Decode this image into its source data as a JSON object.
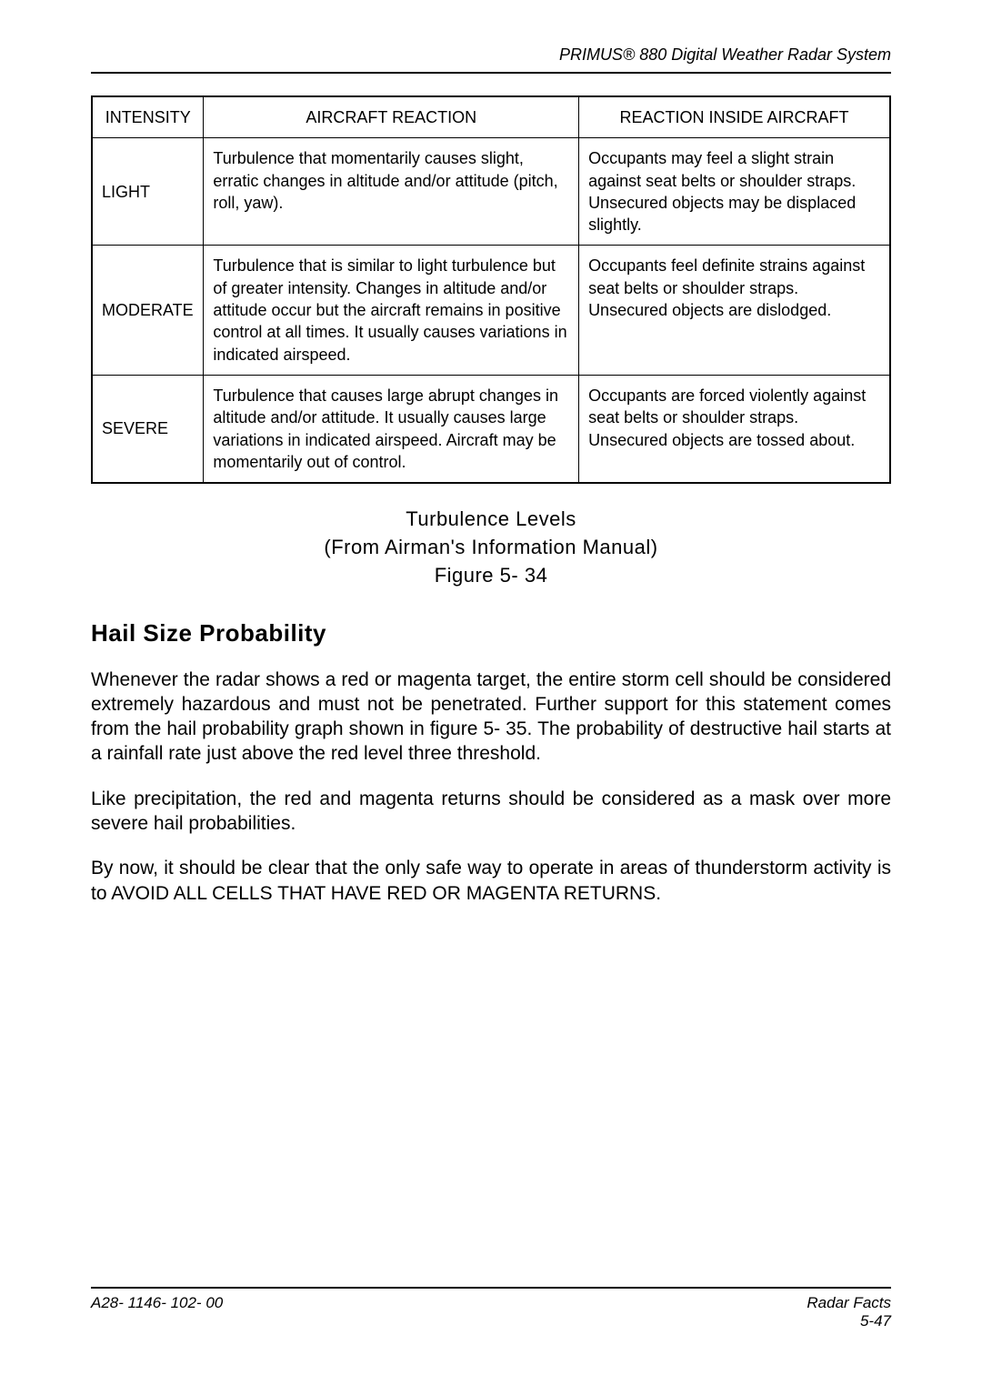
{
  "header": {
    "text": "PRIMUS® 880 Digital Weather Radar System"
  },
  "table": {
    "columns": [
      "INTENSITY",
      "AIRCRAFT REACTION",
      "REACTION INSIDE AIRCRAFT"
    ],
    "col_widths": [
      "14%",
      "47%",
      "39%"
    ],
    "rows": [
      {
        "intensity": "LIGHT",
        "aircraft": "Turbulence that momentarily causes slight, erratic changes in altitude and/or attitude (pitch, roll, yaw).",
        "inside": "Occupants may feel a slight strain against seat belts or shoulder straps. Unsecured objects may be displaced slightly."
      },
      {
        "intensity": "MODERATE",
        "aircraft": "Turbulence that is similar to light turbulence but of greater intensity. Changes in altitude and/or attitude occur but the aircraft remains in positive control at all times. It usually causes variations in indicated airspeed.",
        "inside": "Occupants feel definite strains against seat belts or shoulder straps. Unsecured objects are dislodged."
      },
      {
        "intensity": "SEVERE",
        "aircraft": "Turbulence that causes large abrupt changes in altitude and/or attitude. It usually causes large variations in indicated airspeed. Aircraft may be momentarily out of control.",
        "inside": "Occupants are forced violently against seat belts or shoulder straps. Unsecured objects are tossed about."
      }
    ]
  },
  "caption": {
    "line1": "Turbulence Levels",
    "line2": "(From Airman's Information Manual)",
    "line3": "Figure 5- 34"
  },
  "section": {
    "title": "Hail Size Probability",
    "p1": "Whenever the radar shows a red or magenta target, the entire storm cell should be considered extremely hazardous and must not be penetrated. Further support for this statement comes from the hail probability graph shown in figure 5- 35. The probability of destructive hail starts at a rainfall rate just above  the red level three threshold.",
    "p2": "Like precipitation, the red and magenta returns should be considered as a mask over more severe hail probabilities.",
    "p3": "By now, it should be clear that the only safe way to operate in areas of thunderstorm activity is to AVOID ALL CELLS THAT HAVE RED OR MAGENTA RETURNS."
  },
  "footer": {
    "left": "A28- 1146- 102- 00",
    "right1": "Radar Facts",
    "right2": "5-47"
  }
}
